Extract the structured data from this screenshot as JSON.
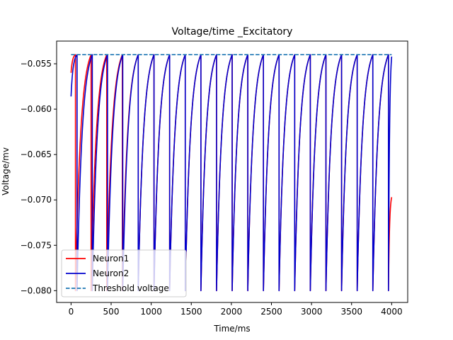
{
  "chart_data": {
    "type": "line",
    "title": "Voltage/time  _Excitatory",
    "xlabel": "Time/ms",
    "ylabel": "Voltage/mv",
    "xlim": [
      -180,
      4200
    ],
    "ylim": [
      -0.0813,
      -0.0525
    ],
    "xticks": [
      0,
      500,
      1000,
      1500,
      2000,
      2500,
      3000,
      3500,
      4000
    ],
    "xtick_labels": [
      "0",
      "500",
      "1000",
      "1500",
      "2000",
      "2500",
      "3000",
      "3500",
      "4000"
    ],
    "yticks": [
      -0.055,
      -0.06,
      -0.065,
      -0.07,
      -0.075,
      -0.08
    ],
    "ytick_labels": [
      "−0.055",
      "−0.060",
      "−0.065",
      "−0.070",
      "−0.075",
      "−0.080"
    ],
    "grid": false,
    "legend_position": "lower-left",
    "series": [
      {
        "name": "Neuron1",
        "color": "#ff0000",
        "style": "solid",
        "v_start": -0.056,
        "v_reset": -0.08,
        "v_end": -0.0697,
        "spike_times": [
          55,
          250,
          445,
          640,
          838,
          1035,
          1230,
          1425,
          1620,
          1815,
          2010,
          2205,
          2400,
          2595,
          2790,
          2985,
          3180,
          3375,
          3570,
          3765,
          3960
        ]
      },
      {
        "name": "Neuron2",
        "color": "#0000cd",
        "style": "solid",
        "v_start": -0.0586,
        "v_reset": -0.08,
        "v_end": -0.0542,
        "spike_times": [
          75,
          265,
          455,
          645,
          838,
          1035,
          1230,
          1425,
          1620,
          1815,
          2010,
          2205,
          2400,
          2595,
          2790,
          2985,
          3180,
          3375,
          3570,
          3765,
          3960
        ]
      },
      {
        "name": "Threshold voltage",
        "color": "#1f77b4",
        "style": "dashed",
        "x": [
          0,
          4000
        ],
        "y": [
          -0.054,
          -0.054
        ]
      }
    ]
  }
}
